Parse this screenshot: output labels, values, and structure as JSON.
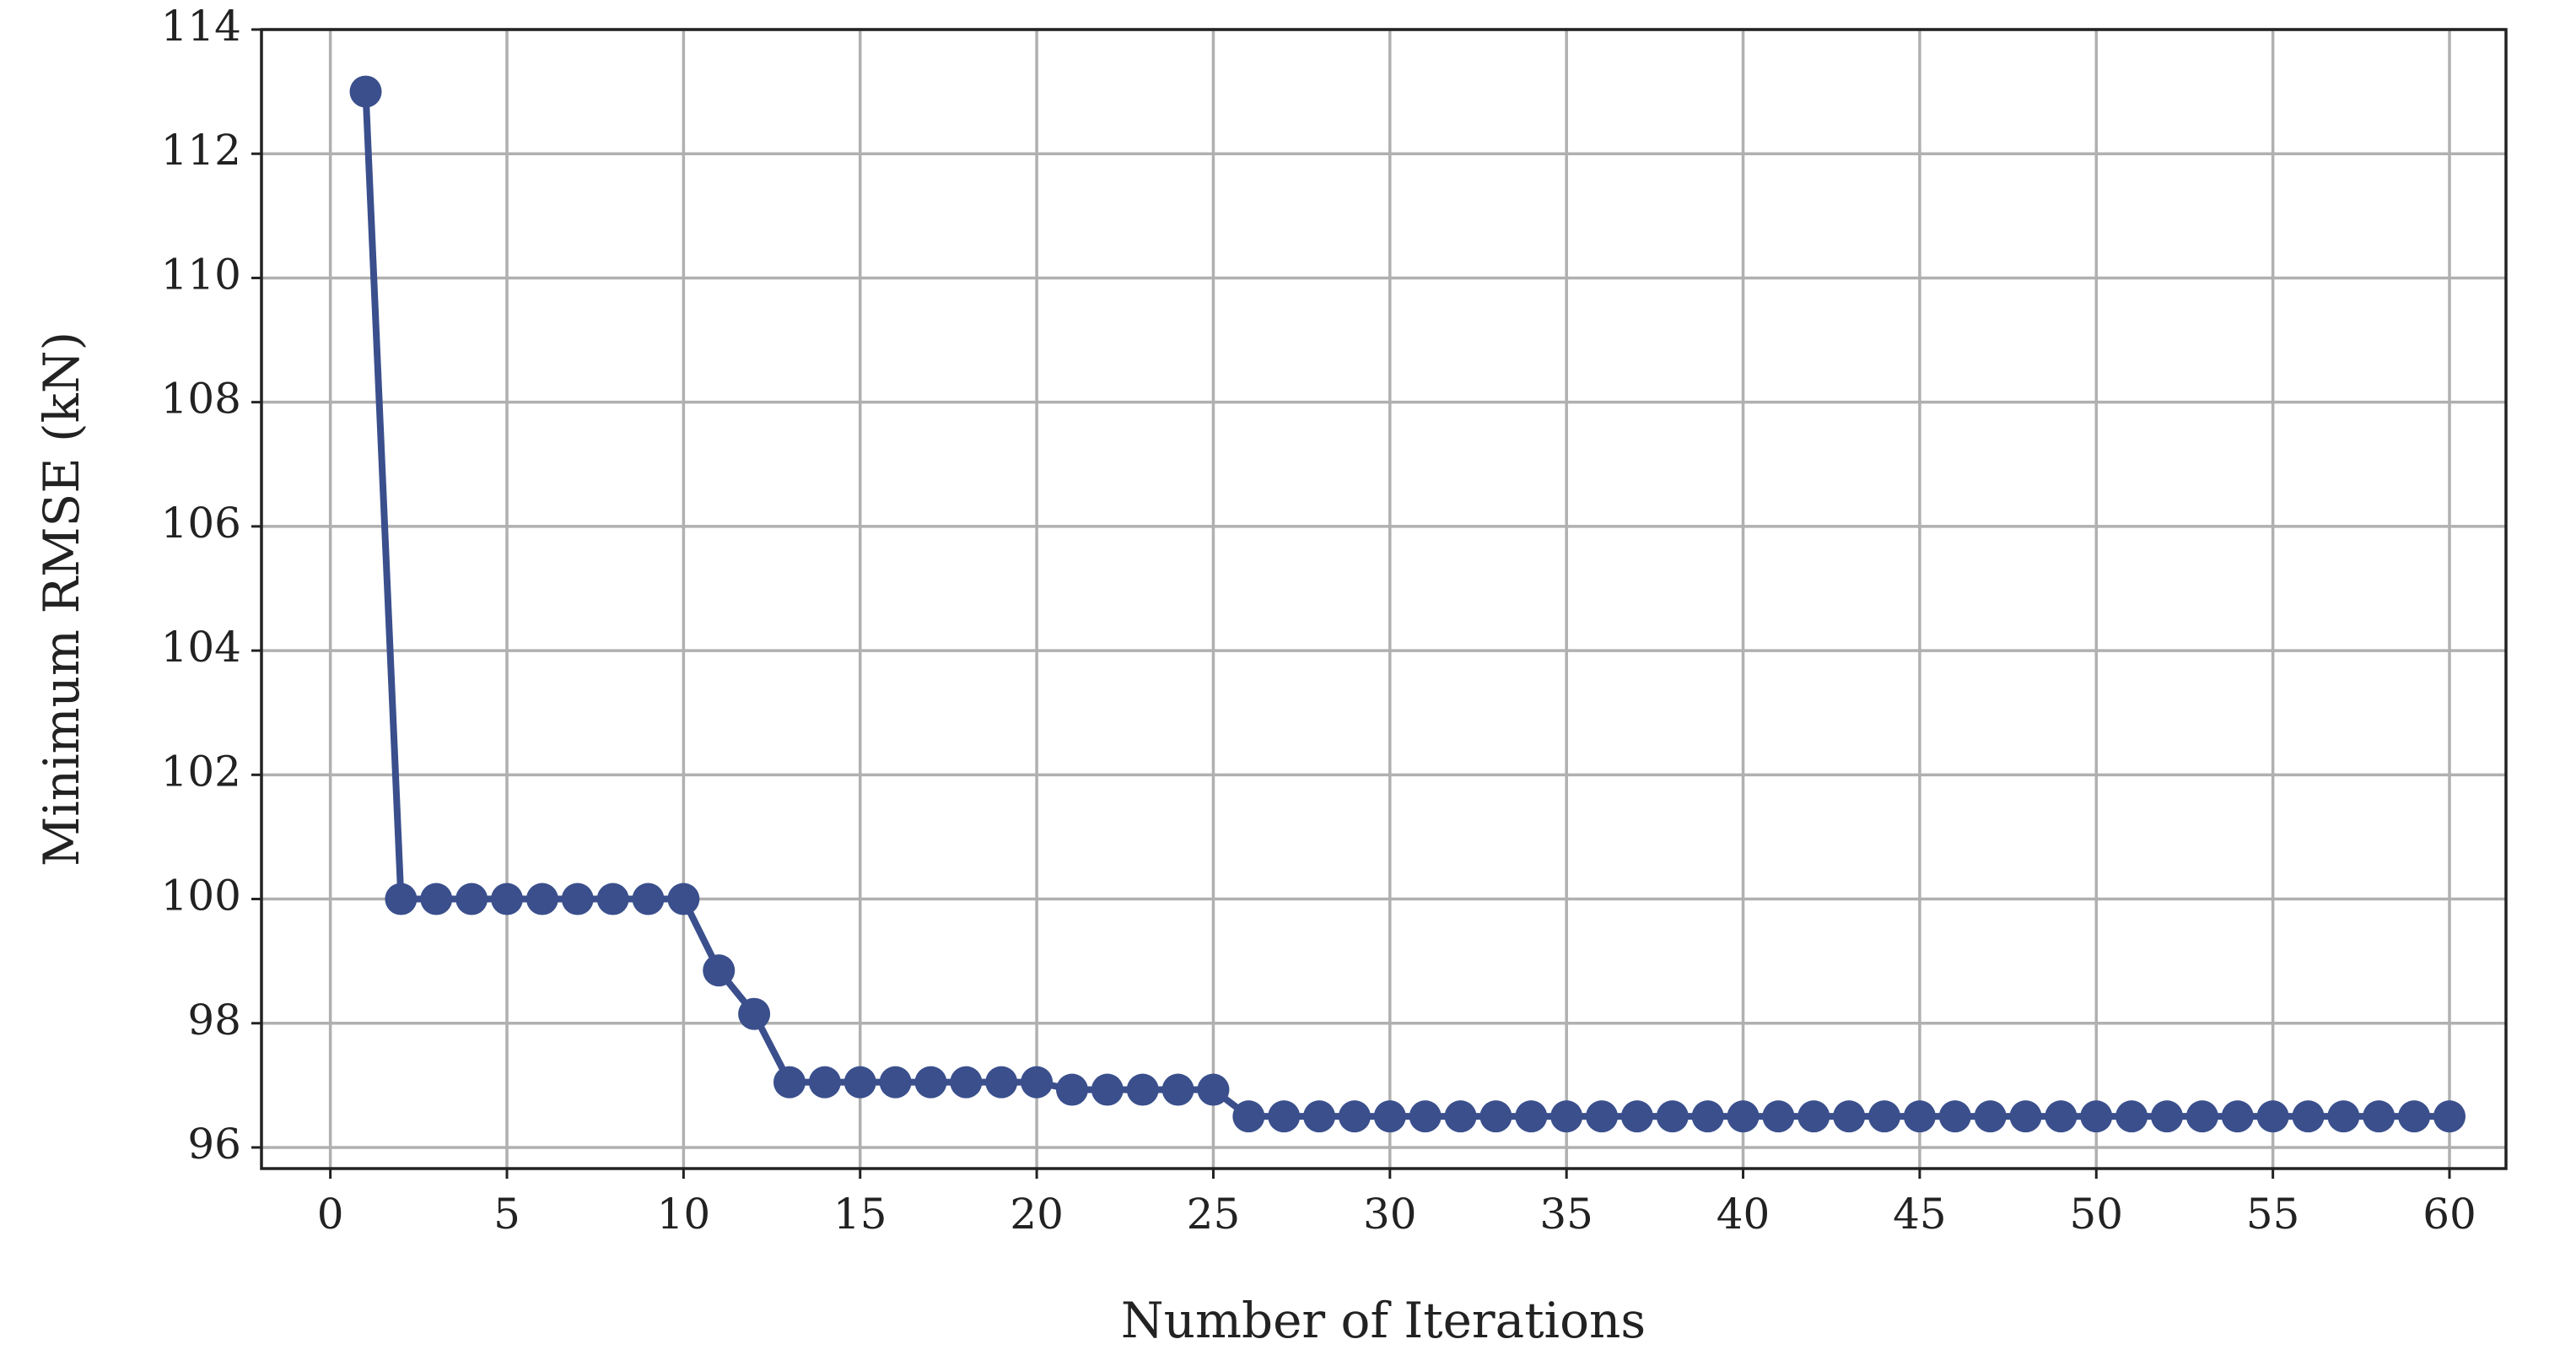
{
  "chart_data": {
    "type": "line",
    "xlabel": "Number of Iterations",
    "ylabel": "Minimum RMSE (kN)",
    "x": [
      1,
      2,
      3,
      4,
      5,
      6,
      7,
      8,
      9,
      10,
      11,
      12,
      13,
      14,
      15,
      16,
      17,
      18,
      19,
      20,
      21,
      22,
      23,
      24,
      25,
      26,
      27,
      28,
      29,
      30,
      31,
      32,
      33,
      34,
      35,
      36,
      37,
      38,
      39,
      40,
      41,
      42,
      43,
      44,
      45,
      46,
      47,
      48,
      49,
      50,
      51,
      52,
      53,
      54,
      55,
      56,
      57,
      58,
      59,
      60
    ],
    "series": [
      {
        "color": "#3a4f8c",
        "values": [
          113,
          100,
          100,
          100,
          100,
          100,
          100,
          100,
          100,
          100,
          98.85,
          98.15,
          97.05,
          97.05,
          97.05,
          97.05,
          97.05,
          97.05,
          97.05,
          97.05,
          96.93,
          96.93,
          96.93,
          96.93,
          96.93,
          96.5,
          96.5,
          96.5,
          96.5,
          96.5,
          96.5,
          96.5,
          96.5,
          96.5,
          96.5,
          96.5,
          96.5,
          96.5,
          96.5,
          96.5,
          96.5,
          96.5,
          96.5,
          96.5,
          96.5,
          96.5,
          96.5,
          96.5,
          96.5,
          96.5,
          96.5,
          96.5,
          96.5,
          96.5,
          96.5,
          96.5,
          96.5,
          96.5,
          96.5,
          96.5
        ]
      }
    ],
    "xlim": [
      -1.95,
      61.6
    ],
    "ylim": [
      95.66,
      114
    ],
    "xticks": [
      0,
      5,
      10,
      15,
      20,
      25,
      30,
      35,
      40,
      45,
      50,
      55,
      60
    ],
    "yticks": [
      96,
      98,
      100,
      102,
      104,
      106,
      108,
      110,
      112,
      114
    ],
    "grid": true
  }
}
